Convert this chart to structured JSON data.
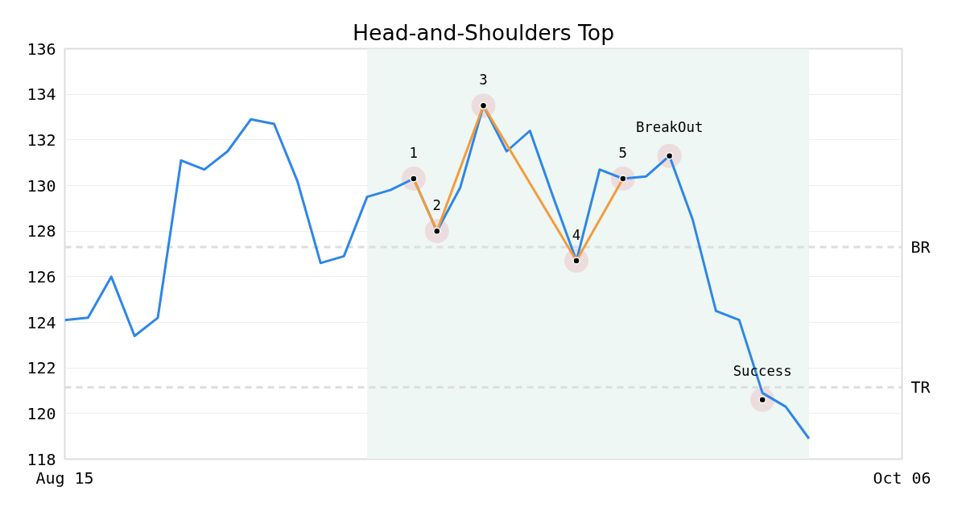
{
  "chart_data": {
    "type": "line",
    "title": "Head-and-Shoulders Top",
    "categories": [
      "Aug 15",
      null,
      null,
      null,
      null,
      null,
      null,
      null,
      null,
      null,
      null,
      null,
      null,
      null,
      null,
      null,
      null,
      null,
      null,
      null,
      null,
      null,
      null,
      null,
      null,
      null,
      null,
      null,
      null,
      null,
      null,
      null,
      null,
      null,
      null,
      null,
      "Oct 06"
    ],
    "ylim": [
      118,
      136
    ],
    "yticks": [
      118,
      120,
      122,
      124,
      126,
      128,
      130,
      132,
      134,
      136
    ],
    "series": [
      {
        "color": "#2e86e8",
        "values": [
          124.1,
          124.2,
          126.0,
          123.4,
          124.2,
          131.1,
          130.7,
          131.5,
          132.9,
          132.7,
          130.2,
          126.6,
          126.9,
          129.5,
          129.8,
          130.3,
          128.0,
          129.9,
          133.5,
          131.5,
          132.4,
          129.5,
          126.7,
          130.7,
          130.3,
          130.4,
          131.3,
          128.5,
          124.5,
          124.1,
          120.9,
          120.3,
          118.9,
          null,
          null,
          null,
          null
        ]
      },
      {
        "color": "#f39c3d",
        "values": [
          null,
          null,
          null,
          null,
          null,
          null,
          null,
          null,
          null,
          null,
          null,
          null,
          null,
          null,
          null,
          130.3,
          128.0,
          null,
          133.5,
          null,
          null,
          null,
          126.7,
          null,
          130.3,
          null,
          null,
          null,
          null,
          null,
          null,
          null,
          null,
          null,
          null,
          null,
          null
        ]
      },
      {
        "type": "scatter",
        "color": "#000000",
        "marker": "circle",
        "values": [
          null,
          null,
          null,
          null,
          null,
          null,
          null,
          null,
          null,
          null,
          null,
          null,
          null,
          null,
          null,
          130.3,
          128.0,
          null,
          133.5,
          null,
          null,
          null,
          126.7,
          null,
          130.3,
          null,
          131.3,
          null,
          null,
          null,
          120.6,
          null,
          null,
          null,
          null,
          null,
          null
        ]
      }
    ],
    "annotations": [
      {
        "text": "1",
        "y": 130.3
      },
      {
        "text": "2",
        "y": 128.0
      },
      {
        "text": "3",
        "y": 133.5
      },
      {
        "text": "4",
        "y": 126.7
      },
      {
        "text": "5",
        "y": 130.3
      },
      {
        "text": "BreakOut",
        "y": 131.3
      },
      {
        "text": "Success",
        "y": 120.6
      }
    ],
    "ref_lines": [
      {
        "axis": "y",
        "value": 127.3,
        "label": "BR",
        "color": "#dddddd",
        "line_style": "dashed"
      },
      {
        "axis": "y",
        "value": 121.15,
        "label": "TR",
        "color": "#dddddd",
        "line_style": "dashed"
      }
    ],
    "grid": "y"
  }
}
